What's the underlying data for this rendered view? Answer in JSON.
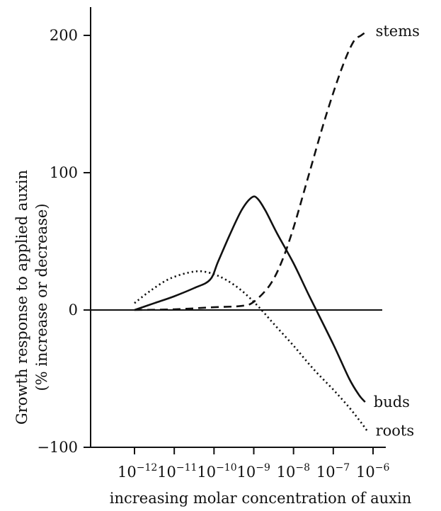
{
  "chart_data": {
    "type": "line",
    "title": "",
    "xlabel": "increasing molar concentration of auxin",
    "ylabel": "Growth response to applied auxin",
    "ylabel2": "(% increase or decrease)",
    "xscale": "log",
    "xlim": [
      1e-12,
      1e-06
    ],
    "ylim": [
      -100,
      200
    ],
    "yticks": [
      {
        "value": -100,
        "label": "−100"
      },
      {
        "value": 0,
        "label": "0"
      },
      {
        "value": 100,
        "label": "100"
      },
      {
        "value": 200,
        "label": "200"
      }
    ],
    "xticks": [
      {
        "exp": -12,
        "base": "10",
        "sup": "−12"
      },
      {
        "exp": -11,
        "base": "10",
        "sup": "−11"
      },
      {
        "exp": -10,
        "base": "10",
        "sup": "−10"
      },
      {
        "exp": -9,
        "base": "10",
        "sup": "−9"
      },
      {
        "exp": -8,
        "base": "10",
        "sup": "−8"
      },
      {
        "exp": -7,
        "base": "10",
        "sup": "−7"
      },
      {
        "exp": -6,
        "base": "10",
        "sup": "−6"
      }
    ],
    "grid": false,
    "legend": "none",
    "series": [
      {
        "name": "stems",
        "style": "dashed",
        "color": "#111111",
        "points": [
          [
            -12,
            0
          ],
          [
            -11,
            0.5
          ],
          [
            -10,
            2
          ],
          [
            -9.3,
            3
          ],
          [
            -9,
            6
          ],
          [
            -8.6,
            18
          ],
          [
            -8.3,
            35
          ],
          [
            -8,
            60
          ],
          [
            -7.6,
            100
          ],
          [
            -7.2,
            140
          ],
          [
            -6.8,
            175
          ],
          [
            -6.5,
            195
          ],
          [
            -6.3,
            200
          ],
          [
            -6.15,
            203
          ]
        ]
      },
      {
        "name": "buds",
        "style": "solid",
        "color": "#111111",
        "points": [
          [
            -12,
            0
          ],
          [
            -11.5,
            5
          ],
          [
            -11,
            10
          ],
          [
            -10.5,
            16
          ],
          [
            -10.1,
            22
          ],
          [
            -9.9,
            35
          ],
          [
            -9.6,
            55
          ],
          [
            -9.3,
            73
          ],
          [
            -9.05,
            82
          ],
          [
            -8.9,
            81
          ],
          [
            -8.7,
            72
          ],
          [
            -8.4,
            55
          ],
          [
            -8,
            34
          ],
          [
            -7.6,
            10
          ],
          [
            -7,
            -25
          ],
          [
            -6.6,
            -50
          ],
          [
            -6.35,
            -62
          ],
          [
            -6.2,
            -67
          ]
        ]
      },
      {
        "name": "roots",
        "style": "dotted",
        "color": "#111111",
        "points": [
          [
            -12,
            5
          ],
          [
            -11.6,
            14
          ],
          [
            -11.1,
            23
          ],
          [
            -10.5,
            28
          ],
          [
            -10.1,
            27
          ],
          [
            -9.7,
            22
          ],
          [
            -9.3,
            14
          ],
          [
            -8.9,
            3
          ],
          [
            -8.5,
            -10
          ],
          [
            -8,
            -26
          ],
          [
            -7.5,
            -43
          ],
          [
            -7,
            -58
          ],
          [
            -6.6,
            -71
          ],
          [
            -6.3,
            -82
          ],
          [
            -6.15,
            -88
          ]
        ]
      }
    ]
  }
}
